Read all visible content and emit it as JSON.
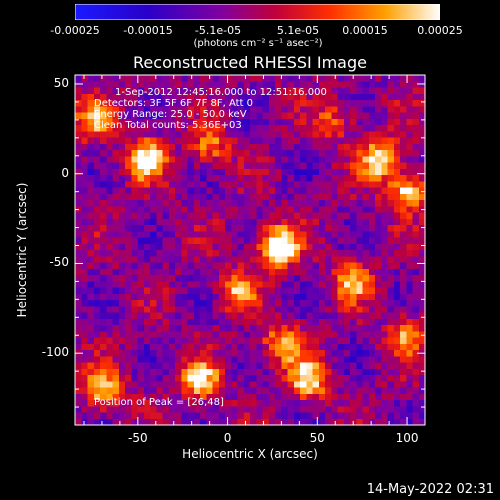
{
  "chart_data": {
    "type": "heatmap",
    "title": "Reconstructed RHESSI Image",
    "xlabel": "Heliocentric X (arcsec)",
    "ylabel": "Heliocentric Y (arcsec)",
    "xlim": [
      -85,
      110
    ],
    "ylim": [
      -140,
      55
    ],
    "x_ticks": [
      -50,
      0,
      50,
      100
    ],
    "y_ticks": [
      50,
      0,
      -50,
      -100
    ],
    "colorbar": {
      "ticks": [
        "-0.00025",
        "-0.00015",
        "-5.1e-05",
        "5.1e-05",
        "0.00015",
        "0.00025"
      ],
      "units": "(photons cm⁻² s⁻¹ asec⁻²)",
      "range": [
        -0.00025,
        0.00025
      ]
    },
    "annotations": {
      "time": "1-Sep-2012 12:45:16.000 to 12:51:16.000",
      "detectors": "Detectors: 3F 5F 6F 7F 8F, Att 0",
      "energy": "Energy Range: 25.0 - 50.0 keV",
      "clean": "Clean     Total counts: 5.36E+03",
      "peak": "Position of Peak = [26,48]"
    },
    "bright_sources": [
      {
        "x": 28,
        "y": -40,
        "intensity": 1.0
      },
      {
        "x": -45,
        "y": 8,
        "intensity": 0.85
      },
      {
        "x": 85,
        "y": 8,
        "intensity": 0.8
      },
      {
        "x": 100,
        "y": -10,
        "intensity": 0.75
      },
      {
        "x": -75,
        "y": 30,
        "intensity": 0.55
      },
      {
        "x": -70,
        "y": -120,
        "intensity": 0.7
      },
      {
        "x": -15,
        "y": -115,
        "intensity": 0.7
      },
      {
        "x": 45,
        "y": -115,
        "intensity": 0.75
      },
      {
        "x": 30,
        "y": -95,
        "intensity": 0.6
      },
      {
        "x": 5,
        "y": -65,
        "intensity": 0.55
      },
      {
        "x": -10,
        "y": 15,
        "intensity": 0.5
      },
      {
        "x": 70,
        "y": -60,
        "intensity": 0.55
      },
      {
        "x": 100,
        "y": -90,
        "intensity": 0.5
      },
      {
        "x": 60,
        "y": 30,
        "intensity": 0.4
      }
    ]
  },
  "footer": {
    "timestamp": "14-May-2022 02:31"
  }
}
